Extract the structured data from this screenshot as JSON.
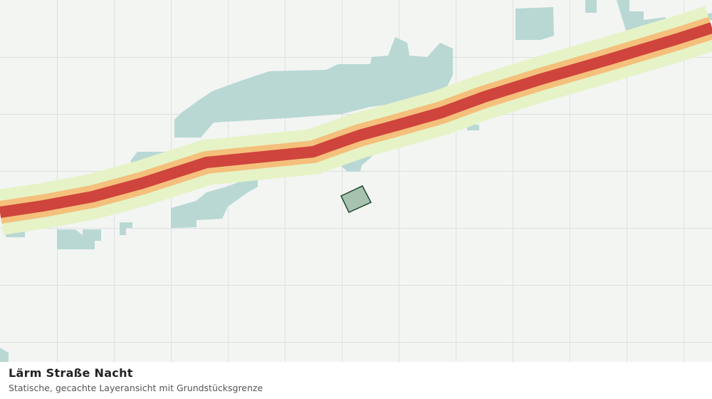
{
  "map": {
    "title": "Lärm Straße Nacht",
    "subtitle": "Statische, gecachte Layeransicht mit Grundstücksgrenze"
  }
}
